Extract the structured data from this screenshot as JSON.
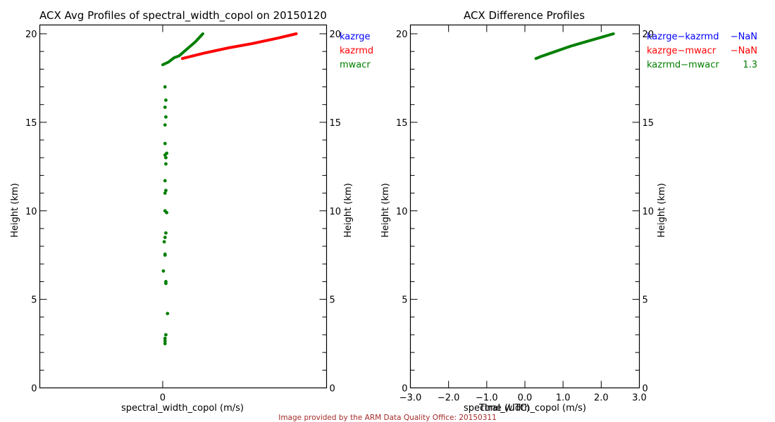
{
  "footer": "Image provided by the ARM Data Quality Office: 20150311",
  "chart_data": [
    {
      "type": "scatter",
      "title": "ACX Avg Profiles of spectral_width_copol on 20150120",
      "xlabel": "spectral_width_copol (m/s)",
      "ylabel": "Height (km)",
      "ylabel_right": "Height (km)",
      "xlim": [
        -1.5,
        2.0
      ],
      "ylim": [
        0,
        20
      ],
      "xticks": [
        0
      ],
      "xtick_labels": [
        "0"
      ],
      "yticks": [
        0,
        5,
        10,
        15,
        20
      ],
      "ytick_labels": [
        "0",
        "5",
        "10",
        "15",
        "20"
      ],
      "yminor_step": 1,
      "grid": false,
      "legend_placement": "right-outside-top",
      "series": [
        {
          "name": "kazrge",
          "color": "#0000ff",
          "points": []
        },
        {
          "name": "kazrmd",
          "color": "#ff0000",
          "points": [
            [
              0.24,
              18.6
            ],
            [
              0.5,
              18.9
            ],
            [
              0.8,
              19.2
            ],
            [
              1.1,
              19.45
            ],
            [
              1.4,
              19.75
            ],
            [
              1.63,
              20.0
            ]
          ]
        },
        {
          "name": "mwacr",
          "color": "#007f00",
          "points": [
            [
              0.0,
              18.25
            ],
            [
              0.07,
              18.4
            ],
            [
              0.14,
              18.65
            ],
            [
              0.2,
              18.75
            ],
            [
              0.3,
              19.15
            ],
            [
              0.4,
              19.55
            ],
            [
              0.49,
              20.0
            ],
            [
              0.02,
              17.0
            ],
            [
              0.03,
              16.25
            ],
            [
              0.02,
              15.85
            ],
            [
              0.03,
              15.3
            ],
            [
              0.02,
              14.85
            ],
            [
              0.02,
              13.8
            ],
            [
              0.04,
              13.25
            ],
            [
              0.02,
              13.15
            ],
            [
              0.03,
              13.0
            ],
            [
              0.03,
              12.65
            ],
            [
              0.02,
              11.7
            ],
            [
              0.03,
              11.15
            ],
            [
              0.02,
              11.0
            ],
            [
              0.02,
              10.0
            ],
            [
              0.04,
              9.9
            ],
            [
              0.03,
              8.75
            ],
            [
              0.02,
              8.5
            ],
            [
              0.01,
              8.25
            ],
            [
              0.02,
              7.55
            ],
            [
              0.02,
              7.5
            ],
            [
              0.0,
              6.6
            ],
            [
              0.03,
              6.0
            ],
            [
              0.03,
              5.9
            ],
            [
              0.05,
              4.2
            ],
            [
              0.03,
              3.0
            ],
            [
              0.02,
              2.8
            ],
            [
              0.02,
              2.65
            ],
            [
              0.02,
              2.5
            ]
          ]
        }
      ]
    },
    {
      "type": "line",
      "title": "ACX Difference Profiles",
      "xlabel": "spectral_width_copol (m/s)",
      "xlabel_overlap": "Time (UTC)",
      "ylabel": "Height (km)",
      "ylabel_right": "Height (km)",
      "xlim": [
        -3.0,
        3.0
      ],
      "ylim": [
        0,
        20
      ],
      "xticks": [
        -3.0,
        -2.0,
        -1.0,
        0.0,
        1.0,
        2.0,
        3.0
      ],
      "xtick_labels": [
        "−3.0",
        "−2.0",
        "−1.0",
        "0.0",
        "1.0",
        "2.0",
        "3.0"
      ],
      "yticks": [
        0,
        5,
        10,
        15,
        20
      ],
      "ytick_labels": [
        "0",
        "5",
        "10",
        "15",
        "20"
      ],
      "yminor_step": 1,
      "grid": false,
      "legend_placement": "right-outside-top",
      "series": [
        {
          "name": "kazrge−kazrmd",
          "stat": "−NaN",
          "color": "#0000ff",
          "points": []
        },
        {
          "name": "kazrge−mwacr",
          "stat": "−NaN",
          "color": "#ff0000",
          "points": []
        },
        {
          "name": "kazrmd−mwacr",
          "stat": "1.3",
          "color": "#007f00",
          "points": [
            [
              0.29,
              18.6
            ],
            [
              0.4,
              18.7
            ],
            [
              0.8,
              19.0
            ],
            [
              1.2,
              19.3
            ],
            [
              1.6,
              19.55
            ],
            [
              2.0,
              19.8
            ],
            [
              2.32,
              20.0
            ]
          ]
        }
      ]
    }
  ]
}
